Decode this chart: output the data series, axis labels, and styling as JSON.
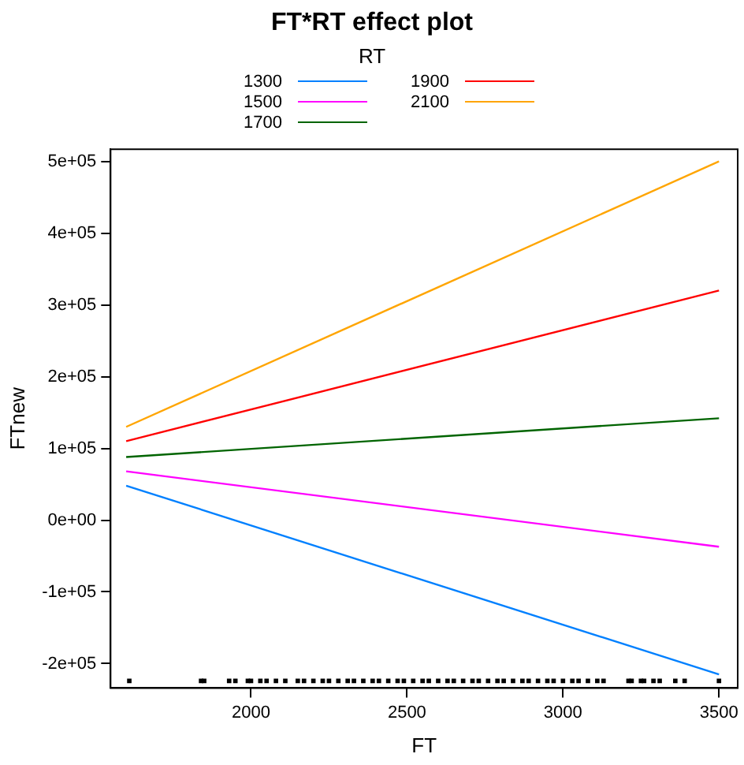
{
  "chart_data": {
    "type": "line",
    "title": "FT*RT effect plot",
    "xlabel": "FT",
    "ylabel": "FTnew",
    "legend_title": "RT",
    "legend": "top",
    "grid": false,
    "xlim": [
      1550,
      3560
    ],
    "xticks": [
      2000,
      2500,
      3000,
      3500
    ],
    "ylim": [
      -234000,
      517000
    ],
    "yticks": [
      {
        "value": -200000,
        "label": "-2e+05"
      },
      {
        "value": -100000,
        "label": "-1e+05"
      },
      {
        "value": 0,
        "label": "0e+00"
      },
      {
        "value": 100000,
        "label": "1e+05"
      },
      {
        "value": 200000,
        "label": "2e+05"
      },
      {
        "value": 300000,
        "label": "3e+05"
      },
      {
        "value": 400000,
        "label": "4e+05"
      },
      {
        "value": 500000,
        "label": "5e+05"
      }
    ],
    "x": [
      1600,
      3500
    ],
    "series": [
      {
        "name": "1300",
        "color": "#0080ff",
        "values": [
          48000,
          -215000
        ]
      },
      {
        "name": "1500",
        "color": "#ff00ff",
        "values": [
          68000,
          -37000
        ]
      },
      {
        "name": "1700",
        "color": "#006400",
        "values": [
          88000,
          142000
        ]
      },
      {
        "name": "1900",
        "color": "#ff0000",
        "values": [
          110000,
          320000
        ]
      },
      {
        "name": "2100",
        "color": "#ffa500",
        "values": [
          130000,
          500000
        ]
      },
      {
        "type": "scatter",
        "color": "#000000",
        "x": [
          1610,
          1840,
          1850,
          1930,
          1950,
          1990,
          2000,
          2030,
          2050,
          2080,
          2110,
          2150,
          2170,
          2200,
          2230,
          2250,
          2280,
          2310,
          2330,
          2360,
          2390,
          2410,
          2440,
          2470,
          2490,
          2520,
          2550,
          2570,
          2600,
          2630,
          2650,
          2680,
          2710,
          2730,
          2760,
          2790,
          2810,
          2840,
          2870,
          2890,
          2920,
          2950,
          2970,
          3000,
          3030,
          3050,
          3080,
          3110,
          3130,
          3210,
          3220,
          3250,
          3260,
          3290,
          3310,
          3360,
          3390,
          3500
        ],
        "values": [
          -224000,
          -224000,
          -224000,
          -224000,
          -224000,
          -224000,
          -224000,
          -224000,
          -224000,
          -224000,
          -224000,
          -224000,
          -224000,
          -224000,
          -224000,
          -224000,
          -224000,
          -224000,
          -224000,
          -224000,
          -224000,
          -224000,
          -224000,
          -224000,
          -224000,
          -224000,
          -224000,
          -224000,
          -224000,
          -224000,
          -224000,
          -224000,
          -224000,
          -224000,
          -224000,
          -224000,
          -224000,
          -224000,
          -224000,
          -224000,
          -224000,
          -224000,
          -224000,
          -224000,
          -224000,
          -224000,
          -224000,
          -224000,
          -224000,
          -224000,
          -224000,
          -224000,
          -224000,
          -224000,
          -224000,
          -224000,
          -224000,
          -224000
        ]
      }
    ]
  }
}
